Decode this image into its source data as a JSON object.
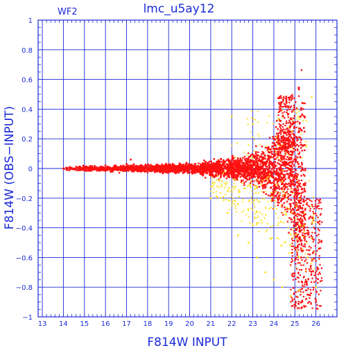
{
  "chart_data": {
    "type": "scatter",
    "title": "lmc_u5ay12",
    "panel_label": "WF2",
    "xlabel": "F814W INPUT",
    "ylabel": "F814W (OBS−INPUT)",
    "xlim": [
      12.8,
      27.0
    ],
    "ylim": [
      -1,
      1
    ],
    "xticks": [
      "13",
      "14",
      "15",
      "16",
      "17",
      "18",
      "19",
      "20",
      "21",
      "22",
      "23",
      "24",
      "25",
      "26"
    ],
    "yticks": [
      "1",
      "0.8",
      "0.6",
      "0.4",
      "0.2",
      "0",
      "−0.2",
      "−0.4",
      "−0.6",
      "−0.8",
      "−1"
    ],
    "grid": true,
    "series_colors": {
      "red": "#ff1010",
      "yellow": "#ffe020"
    },
    "axis_color": "#1a2ad8",
    "series": [
      {
        "color": "red",
        "description_points": [
          [
            14.0,
            0.0
          ],
          [
            14.3,
            0.01
          ],
          [
            14.6,
            -0.01
          ],
          [
            15.0,
            0.01
          ],
          [
            15.5,
            0.0
          ],
          [
            16.0,
            0.02
          ],
          [
            16.5,
            0.0
          ],
          [
            17.0,
            0.03
          ],
          [
            17.2,
            0.06
          ],
          [
            17.5,
            0.01
          ],
          [
            18.0,
            0.0
          ],
          [
            18.5,
            0.01
          ],
          [
            19.0,
            0.0
          ],
          [
            19.5,
            0.01
          ],
          [
            20.0,
            0.02
          ],
          [
            20.5,
            0.01
          ],
          [
            21.0,
            0.02
          ],
          [
            21.5,
            0.0
          ],
          [
            22.0,
            0.03
          ],
          [
            22.5,
            0.01
          ],
          [
            23.0,
            0.05
          ],
          [
            23.5,
            0.1
          ],
          [
            24.0,
            0.2
          ],
          [
            24.3,
            0.32
          ],
          [
            24.6,
            0.45
          ],
          [
            24.9,
            0.3
          ],
          [
            25.0,
            -0.3
          ],
          [
            25.3,
            -0.6
          ],
          [
            25.6,
            -0.85
          ],
          [
            26.0,
            -0.9
          ]
        ]
      },
      {
        "color": "yellow",
        "description_points": [
          [
            21.0,
            -0.2
          ],
          [
            21.8,
            -0.3
          ],
          [
            22.3,
            -0.45
          ],
          [
            22.8,
            -0.5
          ],
          [
            23.2,
            -0.6
          ],
          [
            23.6,
            -0.7
          ],
          [
            24.0,
            -0.75
          ],
          [
            24.4,
            -0.8
          ],
          [
            24.8,
            -0.86
          ],
          [
            25.2,
            -0.82
          ],
          [
            25.6,
            -0.6
          ],
          [
            26.0,
            -0.8
          ],
          [
            22.0,
            0.35
          ],
          [
            23.0,
            0.3
          ],
          [
            25.8,
            0.48
          ]
        ]
      }
    ]
  }
}
